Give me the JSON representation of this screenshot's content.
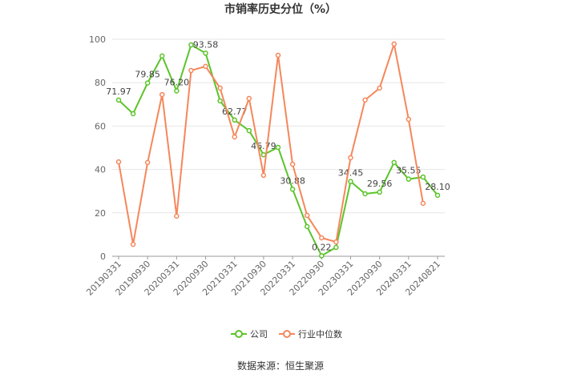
{
  "chart_data": {
    "type": "line",
    "title": "市销率历史分位（%）",
    "source": "数据来源：恒生聚源",
    "categories": [
      "20190331",
      null,
      "20190930",
      null,
      "20200331",
      null,
      "20200930",
      null,
      "20210331",
      null,
      "20210930",
      null,
      "20220331",
      null,
      "20220930",
      null,
      "20230331",
      null,
      "20230930",
      null,
      "20240331",
      null,
      "20240821"
    ],
    "series": [
      {
        "name": "公司",
        "color": "#5bc42a",
        "values": [
          71.97,
          65.7,
          79.85,
          92.3,
          76.2,
          97.4,
          93.58,
          71.6,
          62.77,
          57.9,
          46.79,
          50.2,
          30.88,
          13.7,
          0.22,
          4.1,
          34.45,
          28.8,
          29.56,
          43.2,
          35.55,
          36.5,
          28.1
        ],
        "value_labels": [
          "71.97",
          null,
          "79.85",
          null,
          "76.20",
          null,
          "93.58",
          null,
          "62.77",
          null,
          "46.79",
          null,
          "30.88",
          null,
          "0.22",
          null,
          "34.45",
          null,
          "29.56",
          null,
          "35.55",
          null,
          "28.10"
        ]
      },
      {
        "name": "行业中位数",
        "color": "#f5875b",
        "values": [
          43.5,
          5.5,
          43.2,
          74.5,
          18.5,
          85.6,
          87.5,
          77.5,
          55,
          72.7,
          37.3,
          92.6,
          42.4,
          18.8,
          8.5,
          6.6,
          45.4,
          72,
          77.5,
          97.8,
          63.1,
          24.4,
          null
        ]
      }
    ],
    "ylim": [
      0,
      100
    ],
    "yticks": [
      0,
      20,
      40,
      60,
      80,
      100
    ],
    "grid": true
  }
}
